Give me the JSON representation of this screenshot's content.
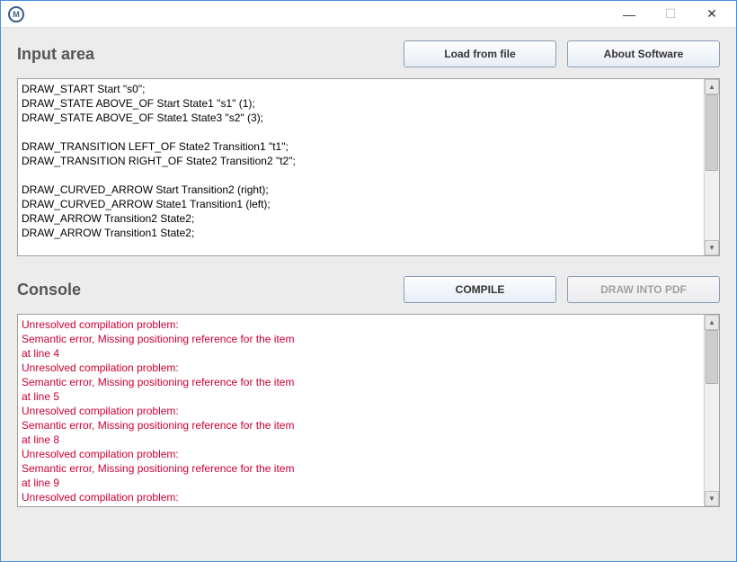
{
  "titlebar": {
    "minimize": "—",
    "maximize": "☐",
    "close": "✕"
  },
  "input_section": {
    "title": "Input area",
    "load_button": "Load from file",
    "about_button": "About Software",
    "lines": [
      "DRAW_START Start \"s0\";",
      "DRAW_STATE ABOVE_OF Start State1 \"s1\" (1);",
      "DRAW_STATE ABOVE_OF State1 State3 \"s2\" (3);",
      "",
      "DRAW_TRANSITION LEFT_OF State2 Transition1 \"t1\";",
      "DRAW_TRANSITION RIGHT_OF State2 Transition2 \"t2\";",
      "",
      "DRAW_CURVED_ARROW Start Transition2 (right);",
      "DRAW_CURVED_ARROW State1 Transition1 (left);",
      "DRAW_ARROW Transition2 State2;",
      "DRAW_ARROW Transition1 State2;"
    ]
  },
  "console_section": {
    "title": "Console",
    "compile_button": "COMPILE",
    "draw_button": "DRAW INTO PDF",
    "lines": [
      "Unresolved compilation problem:",
      "Semantic error, Missing positioning reference for the item",
      "at line 4",
      "Unresolved compilation problem:",
      "Semantic error, Missing positioning reference for the item",
      "at line 5",
      "Unresolved compilation problem:",
      "Semantic error, Missing positioning reference for the item",
      "at line 8",
      "Unresolved compilation problem:",
      "Semantic error, Missing positioning reference for the item",
      "at line 9",
      "Unresolved compilation problem:"
    ]
  },
  "colors": {
    "error_text": "#cc0033",
    "panel_bg": "#ececec",
    "title_text": "#555555"
  }
}
